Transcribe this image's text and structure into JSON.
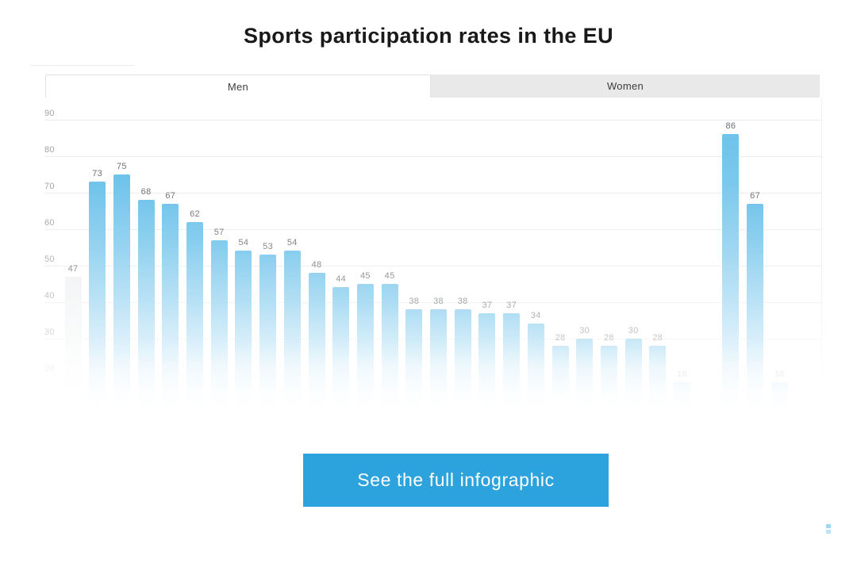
{
  "page": {
    "title": "Sports participation rates in the EU",
    "background": "#ffffff"
  },
  "tabs": {
    "items": [
      {
        "label": "Men",
        "active": true
      },
      {
        "label": "Women",
        "active": false
      }
    ]
  },
  "cta": {
    "label": "See the full infographic",
    "background": "#2ca3dc",
    "text_color": "#ffffff"
  },
  "colors": {
    "bar_blue": "#6fc3eb",
    "grid": "#ececec",
    "axis_label": "#a3a3a3",
    "value_label": "#6d7277",
    "title": "#191919",
    "inactive_tab_bg": "#e9e9e9",
    "watermark_blue": "#9ed7f3"
  },
  "chart_data": {
    "type": "bar",
    "title": "Sports participation rates in the EU",
    "selected_series": "Men",
    "ylim": [
      0,
      90
    ],
    "yticks": [
      90,
      80,
      70,
      60,
      50,
      40,
      30,
      20
    ],
    "grid": true,
    "legend_position": "none",
    "value_labels_shown": true,
    "bottom_fades_to_white": true,
    "bars": [
      {
        "label": "47",
        "value": 47,
        "style": "ghost"
      },
      {
        "label": "73",
        "value": 73
      },
      {
        "label": "75",
        "value": 75
      },
      {
        "label": "68",
        "value": 68
      },
      {
        "label": "67",
        "value": 67
      },
      {
        "label": "62",
        "value": 62
      },
      {
        "label": "57",
        "value": 57
      },
      {
        "label": "54",
        "value": 54
      },
      {
        "label": "53",
        "value": 53
      },
      {
        "label": "54",
        "value": 54
      },
      {
        "label": "48",
        "value": 48
      },
      {
        "label": "44",
        "value": 44
      },
      {
        "label": "45",
        "value": 45
      },
      {
        "label": "45",
        "value": 45
      },
      {
        "label": "38",
        "value": 38
      },
      {
        "label": "38",
        "value": 38
      },
      {
        "label": "38",
        "value": 38
      },
      {
        "label": "37",
        "value": 37
      },
      {
        "label": "37",
        "value": 37
      },
      {
        "label": "34",
        "value": 34
      },
      {
        "label": "28",
        "value": 28
      },
      {
        "label": "30",
        "value": 30
      },
      {
        "label": "28",
        "value": 28
      },
      {
        "label": "30",
        "value": 30
      },
      {
        "label": "28",
        "value": 28
      },
      {
        "label": "18",
        "value": 18
      },
      {
        "label": "",
        "value": null
      },
      {
        "label": "86",
        "value": 86
      },
      {
        "label": "67",
        "value": 67
      },
      {
        "label": "18",
        "value": 18
      }
    ]
  }
}
